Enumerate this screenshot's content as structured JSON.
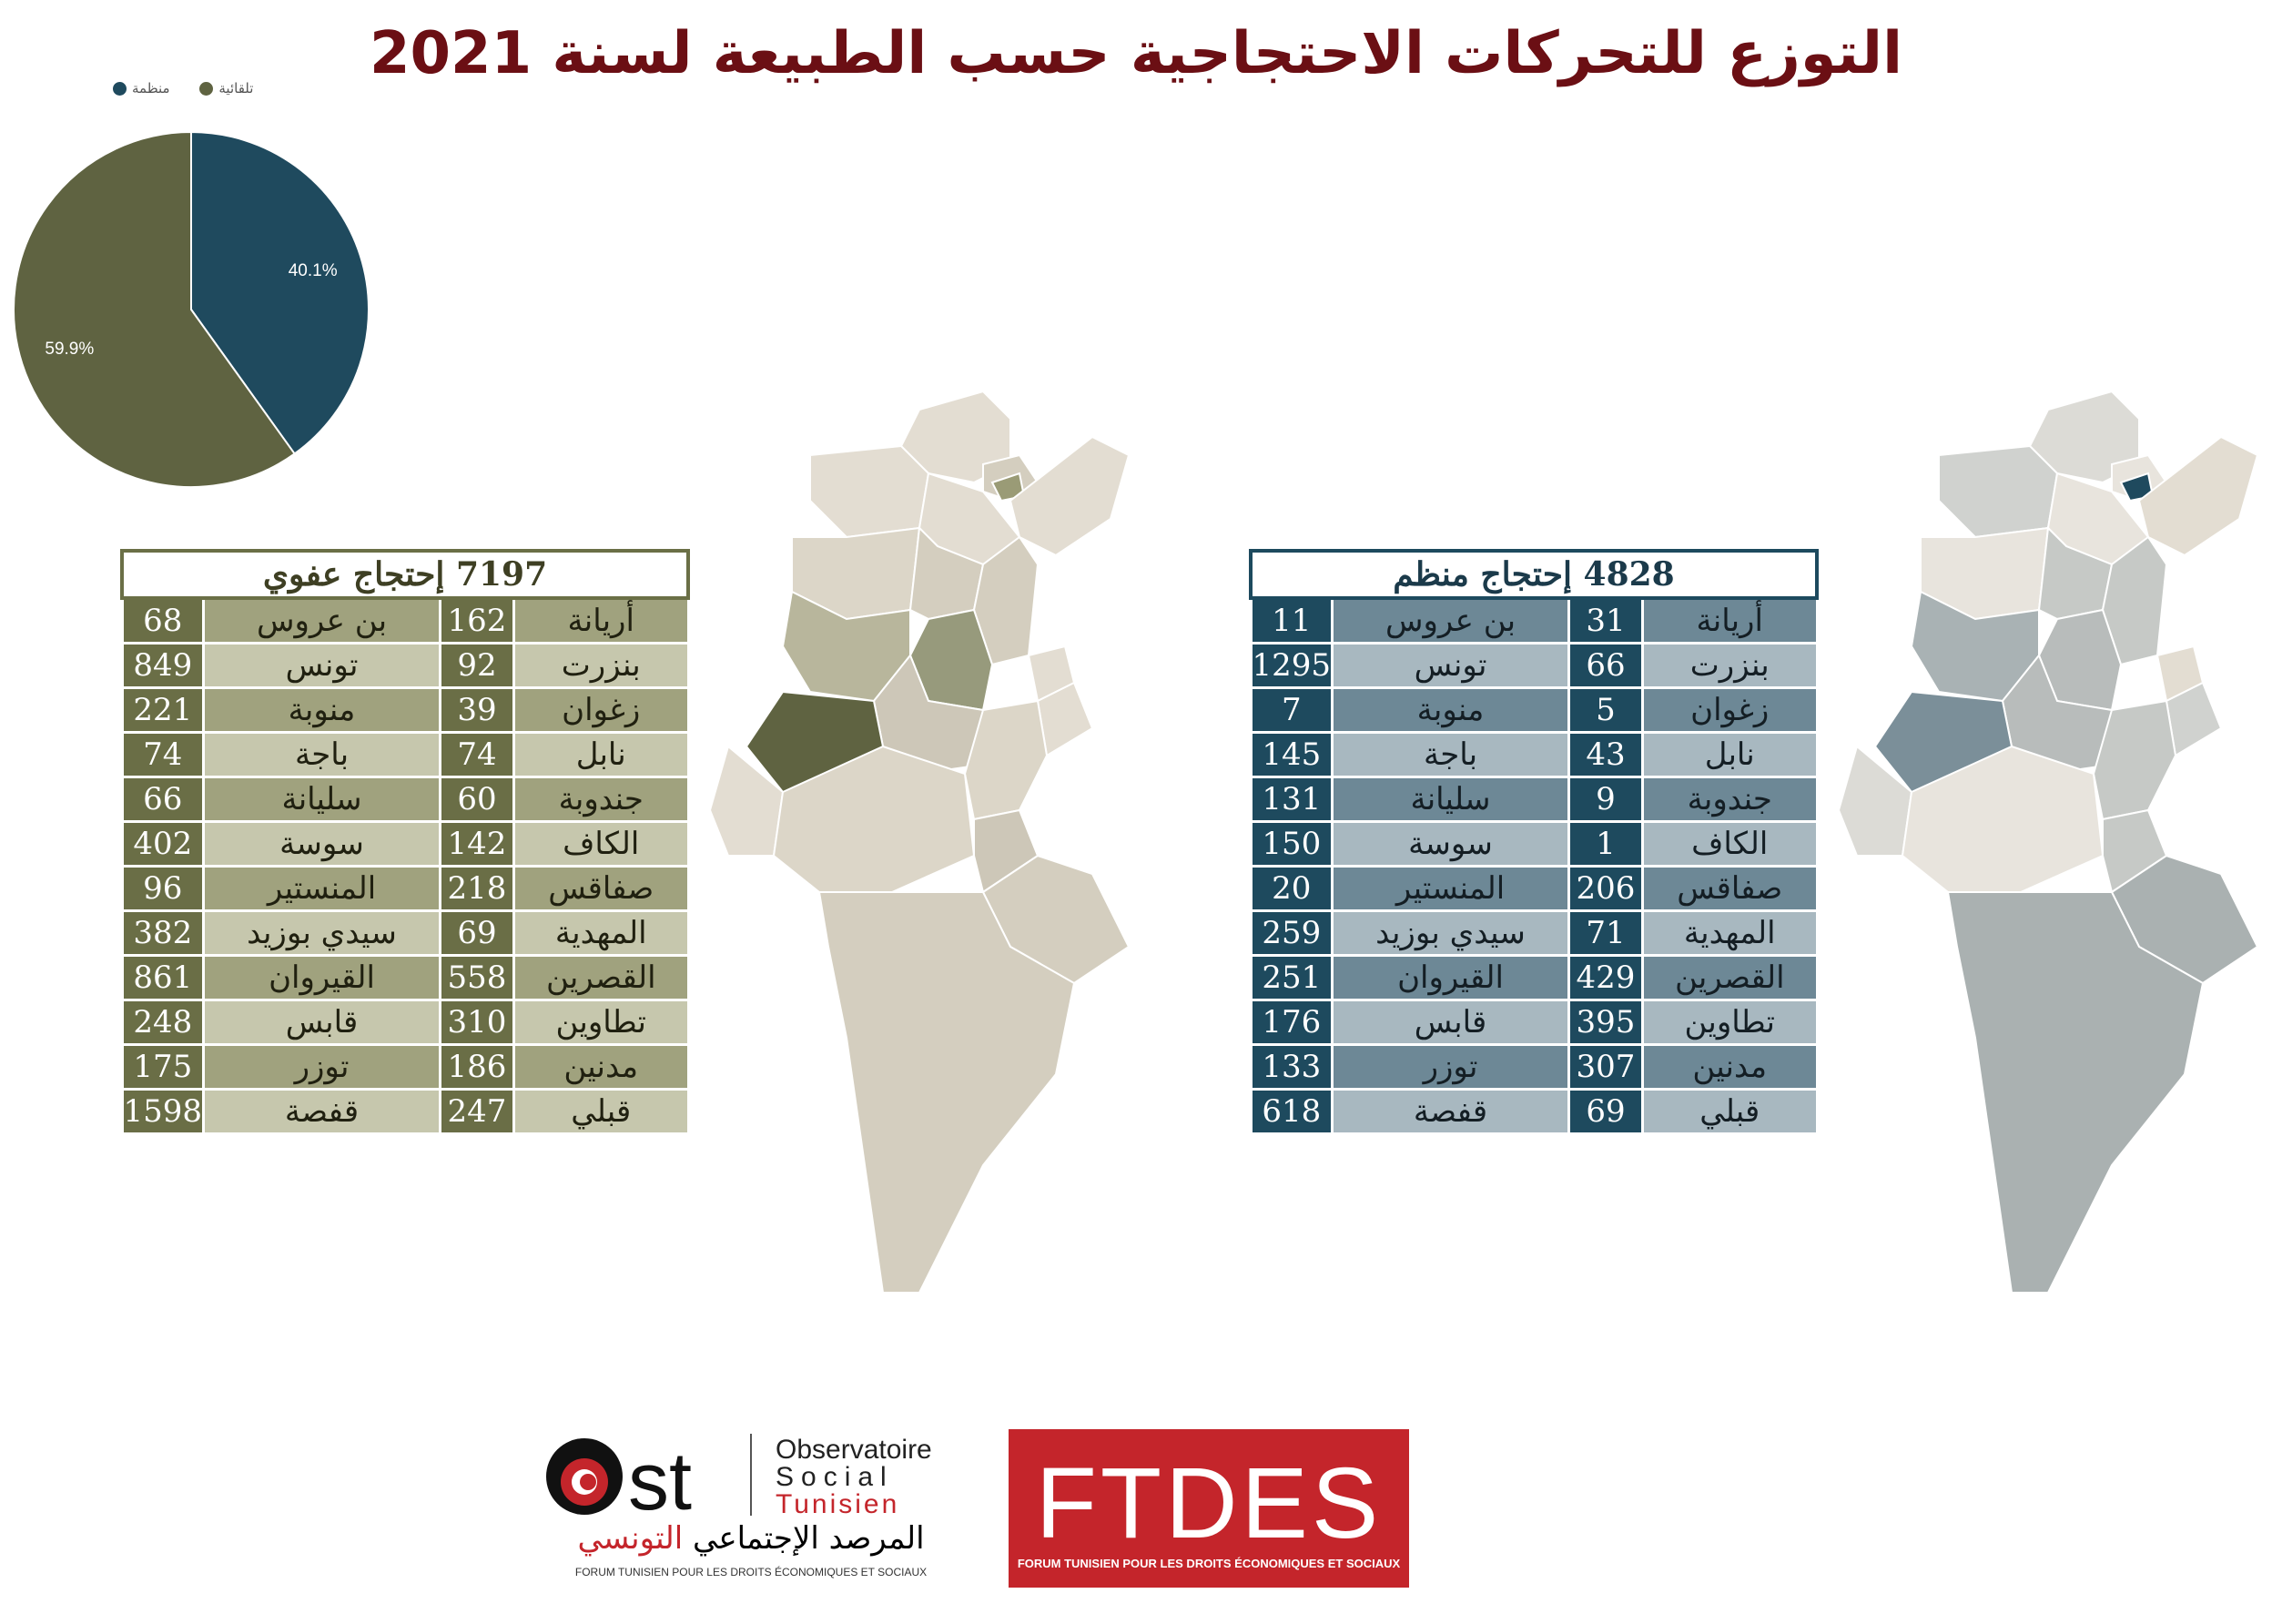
{
  "title": "التوزع للتحركات الاحتجاجية حسب الطبيعة لسنة 2021",
  "colors": {
    "organized": "#1f4a5e",
    "spontaneous": "#5f6341",
    "title": "#6b0f14"
  },
  "chart_data": {
    "type": "pie",
    "legend": [
      "منظمة",
      "تلقائية"
    ],
    "slices": [
      {
        "name": "منظمة",
        "value": 40.1,
        "label": "40.1%"
      },
      {
        "name": "تلقائية",
        "value": 59.9,
        "label": "59.9%"
      }
    ]
  },
  "tables": {
    "spontaneous": {
      "title": "7197 إحتجاج عفوي",
      "rows": [
        {
          "g1": "أريانة",
          "v1": "162",
          "g2": "بن عروس",
          "v2": "68"
        },
        {
          "g1": "بنزرت",
          "v1": "92",
          "g2": "تونس",
          "v2": "849"
        },
        {
          "g1": "زغوان",
          "v1": "39",
          "g2": "منوبة",
          "v2": "221"
        },
        {
          "g1": "نابل",
          "v1": "74",
          "g2": "باجة",
          "v2": "74"
        },
        {
          "g1": "جندوبة",
          "v1": "60",
          "g2": "سليانة",
          "v2": "66"
        },
        {
          "g1": "الكاف",
          "v1": "142",
          "g2": "سوسة",
          "v2": "402"
        },
        {
          "g1": "صفاقس",
          "v1": "218",
          "g2": "المنستير",
          "v2": "96"
        },
        {
          "g1": "المهدية",
          "v1": "69",
          "g2": "سيدي بوزيد",
          "v2": "382"
        },
        {
          "g1": "القصرين",
          "v1": "558",
          "g2": "القيروان",
          "v2": "861"
        },
        {
          "g1": "تطاوين",
          "v1": "310",
          "g2": "قابس",
          "v2": "248"
        },
        {
          "g1": "مدنين",
          "v1": "186",
          "g2": "توزر",
          "v2": "175"
        },
        {
          "g1": "قبلي",
          "v1": "247",
          "g2": "قفصة",
          "v2": "1598"
        }
      ]
    },
    "organized": {
      "title": "4828 إحتجاج منظم",
      "rows": [
        {
          "g1": "أريانة",
          "v1": "31",
          "g2": "بن عروس",
          "v2": "11"
        },
        {
          "g1": "بنزرت",
          "v1": "66",
          "g2": "تونس",
          "v2": "1295"
        },
        {
          "g1": "زغوان",
          "v1": "5",
          "g2": "منوبة",
          "v2": "7"
        },
        {
          "g1": "نابل",
          "v1": "43",
          "g2": "باجة",
          "v2": "145"
        },
        {
          "g1": "جندوبة",
          "v1": "9",
          "g2": "سليانة",
          "v2": "131"
        },
        {
          "g1": "الكاف",
          "v1": "1",
          "g2": "سوسة",
          "v2": "150"
        },
        {
          "g1": "صفاقس",
          "v1": "206",
          "g2": "المنستير",
          "v2": "20"
        },
        {
          "g1": "المهدية",
          "v1": "71",
          "g2": "سيدي بوزيد",
          "v2": "259"
        },
        {
          "g1": "القصرين",
          "v1": "429",
          "g2": "القيروان",
          "v2": "251"
        },
        {
          "g1": "تطاوين",
          "v1": "395",
          "g2": "قابس",
          "v2": "176"
        },
        {
          "g1": "مدنين",
          "v1": "307",
          "g2": "توزر",
          "v2": "133"
        },
        {
          "g1": "قبلي",
          "v1": "69",
          "g2": "قفصة",
          "v2": "618"
        }
      ]
    }
  },
  "logos": {
    "ost": {
      "line1": "Observatoire",
      "line2": "Social",
      "line3": "Tunisien",
      "arabic_black": "المرصد الإجتماعي",
      "arabic_red": "التونسي",
      "forum": "FORUM TUNISIEN POUR LES DROITS ÉCONOMIQUES ET SOCIAUX"
    },
    "ftdes": {
      "name": "FTDES",
      "forum": "FORUM TUNISIEN POUR LES DROITS ÉCONOMIQUES ET SOCIAUX"
    }
  }
}
